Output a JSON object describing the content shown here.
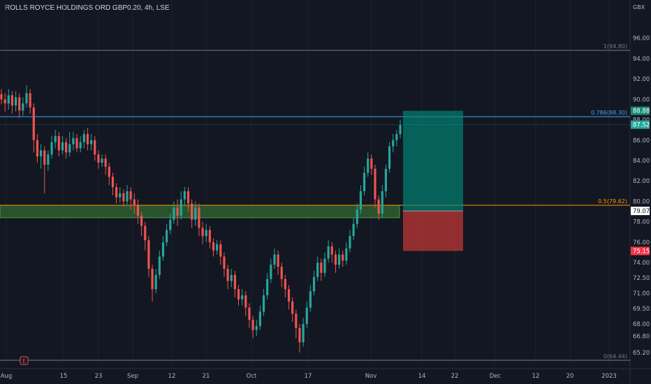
{
  "header": {
    "title": "ROLLS ROYCE HOLDINGS ORD GBP0.20, 4h, LSE"
  },
  "axis": {
    "currency": "GBX"
  },
  "chart_data": {
    "type": "candlestick",
    "ylim": [
      64.44,
      97.2
    ],
    "y_ticks": [
      "65.20",
      "66.80",
      "68.00",
      "69.50",
      "71.00",
      "72.50",
      "74.00",
      "76.00",
      "78.00",
      "80.00",
      "82.00",
      "84.00",
      "86.00",
      "88.00",
      "90.00",
      "92.00",
      "94.00",
      "96.00"
    ],
    "x_ticks": [
      "Aug",
      "15",
      "23",
      "Sep",
      "12",
      "21",
      "Oct",
      "17",
      "Nov",
      "14",
      "22",
      "Dec",
      "12",
      "20",
      "2023"
    ],
    "fib_levels": [
      {
        "label": "1(94.80)",
        "value": 94.8,
        "color": "#787b86"
      },
      {
        "label": "0.786(88.30)",
        "value": 88.3,
        "color": "#42a5f5"
      },
      {
        "label": "0.5(79.62)",
        "value": 79.62,
        "color": "#ff9800"
      },
      {
        "label": "0(64.44)",
        "value": 64.44,
        "color": "#787b86"
      }
    ],
    "price_badges": [
      {
        "label": "88.88",
        "value": 88.88,
        "bg": "#1b8a7a",
        "fg": "#ffffff"
      },
      {
        "label": "87.52",
        "value": 87.52,
        "bg": "#26a69a",
        "fg": "#ffffff"
      },
      {
        "label": "79.07",
        "value": 79.07,
        "bg": "#ffffff",
        "fg": "#131722"
      },
      {
        "label": "75.15",
        "value": 75.15,
        "bg": "#f23645",
        "fg": "#ffffff"
      }
    ],
    "zone": {
      "top": 79.62,
      "bottom": 78.4
    },
    "position": {
      "entry": 79.07,
      "target": 88.88,
      "stop": 75.15
    },
    "candles": [
      [
        90.5,
        90.0,
        91.0,
        89.5
      ],
      [
        90.0,
        89.6,
        90.6,
        88.8
      ],
      [
        89.6,
        90.4,
        91.0,
        89.0
      ],
      [
        90.4,
        89.4,
        90.8,
        88.6
      ],
      [
        89.4,
        90.2,
        90.8,
        88.8
      ],
      [
        90.2,
        88.9,
        90.6,
        88.2
      ],
      [
        88.9,
        89.6,
        90.2,
        88.4
      ],
      [
        89.6,
        90.6,
        91.4,
        89.2
      ],
      [
        90.6,
        89.2,
        91.0,
        88.6
      ],
      [
        89.2,
        86.0,
        89.6,
        84.8
      ],
      [
        86.0,
        84.4,
        86.6,
        83.8
      ],
      [
        84.4,
        85.0,
        85.6,
        83.2
      ],
      [
        85.0,
        83.6,
        85.4,
        80.8
      ],
      [
        83.6,
        84.6,
        85.0,
        83.0
      ],
      [
        84.6,
        85.8,
        86.4,
        84.2
      ],
      [
        85.8,
        86.4,
        87.0,
        85.2
      ],
      [
        86.4,
        85.0,
        86.8,
        84.4
      ],
      [
        85.0,
        85.8,
        86.4,
        84.6
      ],
      [
        85.8,
        84.8,
        86.2,
        84.2
      ],
      [
        84.8,
        85.6,
        86.8,
        84.4
      ],
      [
        85.6,
        86.2,
        86.8,
        85.0
      ],
      [
        86.2,
        85.2,
        86.6,
        84.8
      ],
      [
        85.2,
        85.8,
        86.4,
        84.8
      ],
      [
        85.8,
        86.6,
        87.0,
        85.2
      ],
      [
        86.6,
        85.6,
        87.2,
        85.0
      ],
      [
        85.6,
        86.0,
        86.6,
        85.0
      ],
      [
        86.0,
        84.6,
        86.4,
        84.0
      ],
      [
        84.6,
        83.8,
        85.0,
        83.2
      ],
      [
        83.8,
        84.2,
        84.6,
        83.4
      ],
      [
        84.2,
        83.4,
        84.6,
        82.6
      ],
      [
        83.4,
        82.4,
        83.8,
        81.6
      ],
      [
        82.4,
        81.4,
        82.8,
        80.6
      ],
      [
        81.4,
        80.4,
        81.8,
        79.8
      ],
      [
        80.4,
        80.8,
        81.4,
        79.9
      ],
      [
        80.8,
        80.0,
        81.2,
        79.5
      ],
      [
        80.0,
        81.0,
        81.6,
        79.6
      ],
      [
        81.0,
        80.2,
        81.4,
        79.2
      ],
      [
        80.2,
        79.6,
        80.8,
        78.8
      ],
      [
        79.6,
        78.6,
        80.2,
        77.8
      ],
      [
        78.6,
        77.6,
        79.0,
        76.6
      ],
      [
        77.6,
        76.2,
        78.0,
        75.2
      ],
      [
        76.2,
        73.4,
        76.6,
        72.6
      ],
      [
        73.4,
        71.4,
        73.8,
        70.2
      ],
      [
        71.4,
        72.8,
        73.4,
        71.0
      ],
      [
        72.8,
        74.6,
        75.2,
        72.4
      ],
      [
        74.6,
        76.0,
        76.6,
        74.2
      ],
      [
        76.0,
        77.2,
        77.8,
        75.6
      ],
      [
        77.2,
        78.2,
        78.8,
        76.8
      ],
      [
        78.2,
        79.4,
        80.0,
        77.8
      ],
      [
        79.4,
        78.6,
        80.2,
        77.6
      ],
      [
        78.6,
        80.2,
        81.0,
        78.2
      ],
      [
        80.2,
        81.0,
        81.4,
        79.6
      ],
      [
        81.0,
        79.8,
        81.4,
        79.0
      ],
      [
        79.8,
        78.2,
        80.2,
        77.4
      ],
      [
        78.2,
        79.4,
        80.0,
        77.6
      ],
      [
        79.4,
        77.4,
        79.8,
        76.6
      ],
      [
        77.4,
        76.6,
        78.0,
        75.8
      ],
      [
        76.6,
        77.2,
        77.8,
        76.0
      ],
      [
        77.2,
        76.0,
        77.6,
        75.4
      ],
      [
        76.0,
        75.2,
        76.4,
        74.6
      ],
      [
        75.2,
        75.8,
        76.2,
        74.8
      ],
      [
        75.8,
        74.6,
        76.2,
        73.8
      ],
      [
        74.6,
        73.4,
        75.0,
        72.6
      ],
      [
        73.4,
        72.2,
        73.8,
        71.4
      ],
      [
        72.2,
        72.8,
        73.4,
        71.6
      ],
      [
        72.8,
        71.4,
        73.2,
        70.6
      ],
      [
        71.4,
        70.4,
        71.8,
        69.8
      ],
      [
        70.4,
        70.8,
        71.4,
        69.8
      ],
      [
        70.8,
        69.6,
        71.2,
        68.8
      ],
      [
        69.6,
        68.4,
        70.0,
        67.6
      ],
      [
        68.4,
        67.4,
        68.8,
        66.6
      ],
      [
        67.4,
        67.8,
        68.4,
        66.8
      ],
      [
        67.8,
        69.2,
        69.8,
        67.4
      ],
      [
        69.2,
        70.8,
        71.4,
        68.8
      ],
      [
        70.8,
        72.4,
        73.0,
        70.4
      ],
      [
        72.4,
        73.8,
        74.4,
        72.0
      ],
      [
        73.8,
        74.8,
        75.4,
        73.4
      ],
      [
        74.8,
        73.6,
        75.2,
        72.8
      ],
      [
        73.6,
        72.4,
        74.0,
        71.6
      ],
      [
        72.4,
        71.4,
        72.8,
        70.6
      ],
      [
        71.4,
        70.2,
        71.8,
        69.4
      ],
      [
        70.2,
        69.0,
        70.6,
        68.2
      ],
      [
        69.0,
        67.6,
        69.4,
        66.6
      ],
      [
        67.6,
        66.2,
        68.0,
        65.2
      ],
      [
        66.2,
        68.0,
        68.6,
        65.8
      ],
      [
        68.0,
        69.6,
        70.2,
        67.6
      ],
      [
        69.6,
        71.2,
        71.8,
        69.2
      ],
      [
        71.2,
        72.6,
        73.2,
        70.8
      ],
      [
        72.6,
        74.0,
        74.6,
        72.2
      ],
      [
        74.0,
        73.0,
        74.4,
        72.2
      ],
      [
        73.0,
        74.4,
        75.0,
        72.6
      ],
      [
        74.4,
        75.6,
        76.2,
        74.0
      ],
      [
        75.6,
        74.8,
        76.0,
        74.0
      ],
      [
        74.8,
        73.8,
        75.2,
        73.0
      ],
      [
        73.8,
        74.8,
        75.4,
        73.4
      ],
      [
        74.8,
        74.2,
        75.2,
        73.6
      ],
      [
        74.2,
        75.4,
        76.0,
        73.8
      ],
      [
        75.4,
        76.6,
        77.2,
        75.0
      ],
      [
        76.6,
        77.8,
        78.4,
        76.2
      ],
      [
        77.8,
        79.2,
        79.8,
        77.4
      ],
      [
        79.2,
        81.0,
        81.6,
        78.8
      ],
      [
        81.0,
        82.8,
        83.4,
        80.6
      ],
      [
        82.8,
        84.2,
        84.8,
        82.4
      ],
      [
        84.2,
        83.2,
        84.6,
        82.6
      ],
      [
        83.2,
        80.2,
        83.6,
        79.4
      ],
      [
        80.2,
        78.8,
        80.6,
        78.2
      ],
      [
        78.8,
        81.0,
        81.6,
        78.4
      ],
      [
        81.0,
        83.2,
        83.6,
        80.4
      ],
      [
        83.2,
        85.4,
        85.8,
        82.8
      ],
      [
        85.4,
        86.0,
        86.6,
        84.8
      ],
      [
        86.0,
        86.6,
        87.0,
        85.4
      ],
      [
        86.6,
        87.5,
        88.0,
        86.2
      ]
    ]
  }
}
